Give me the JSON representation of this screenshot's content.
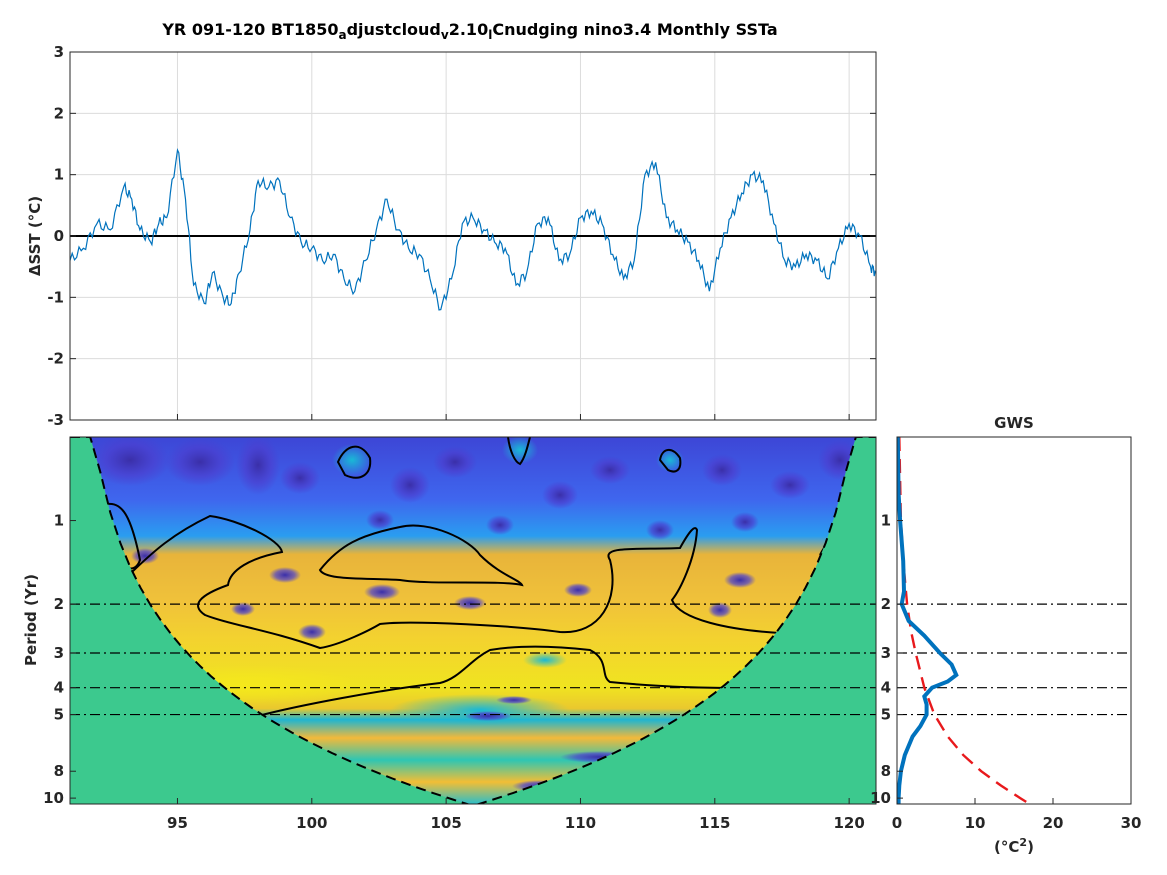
{
  "title": "YR 091-120 BT1850_adjustcloud_v2.10_lCnudging nino3.4 Monthly SSTa",
  "title_parts": {
    "p1": "YR 091-120 BT1850",
    "sub1": "a",
    "p2": "djustcloud",
    "sub2": "v",
    "p3": "2.10",
    "sub3": "l",
    "p4": "Cnudging nino3.4 Monthly SSTa"
  },
  "gws_title": "GWS",
  "colors": {
    "series": "#0072bd",
    "gws_line": "#0072bd",
    "signif": "#e8191c",
    "zero_line": "#000000",
    "coi_fill": "#3cc98e",
    "axis": "#262626"
  },
  "chart_data": [
    {
      "type": "line",
      "name": "timeseries",
      "ylabel": "ΔSST (°C)",
      "xlim": [
        91,
        121
      ],
      "ylim": [
        -3,
        3
      ],
      "xticks": [
        "95",
        "100",
        "105",
        "110",
        "115",
        "120"
      ],
      "yticks": [
        "-3",
        "-2",
        "-1",
        "0",
        "1",
        "2",
        "3"
      ],
      "grid": true,
      "x": [
        91.0,
        91.5,
        92.0,
        92.5,
        93.0,
        93.3,
        93.6,
        94.0,
        94.3,
        94.6,
        95.0,
        95.3,
        95.6,
        96.0,
        96.3,
        96.7,
        97.0,
        97.3,
        97.7,
        98.0,
        98.4,
        98.8,
        99.2,
        99.6,
        100.0,
        100.4,
        100.8,
        101.2,
        101.6,
        102.0,
        102.4,
        102.8,
        103.2,
        103.6,
        104.0,
        104.4,
        104.8,
        105.2,
        105.6,
        106.0,
        106.4,
        106.8,
        107.2,
        107.6,
        108.0,
        108.4,
        108.8,
        109.2,
        109.6,
        110.0,
        110.4,
        110.8,
        111.2,
        111.6,
        112.0,
        112.4,
        112.8,
        113.2,
        113.6,
        114.0,
        114.4,
        114.8,
        115.2,
        115.6,
        116.0,
        116.4,
        116.8,
        117.2,
        117.6,
        118.0,
        118.4,
        118.8,
        119.2,
        119.6,
        120.0,
        120.4,
        120.8,
        121.0
      ],
      "y": [
        -0.4,
        -0.2,
        0.2,
        0.1,
        0.8,
        0.6,
        0.1,
        -0.1,
        0.2,
        0.3,
        1.4,
        0.6,
        -0.8,
        -1.1,
        -0.6,
        -1.0,
        -1.1,
        -0.6,
        0.1,
        0.9,
        0.8,
        0.9,
        0.3,
        -0.1,
        -0.2,
        -0.4,
        -0.3,
        -0.7,
        -0.9,
        -0.4,
        0.1,
        0.6,
        0.1,
        -0.2,
        -0.3,
        -0.7,
        -1.2,
        -0.7,
        0.2,
        0.3,
        0.1,
        -0.1,
        -0.2,
        -0.8,
        -0.6,
        0.2,
        0.3,
        -0.4,
        -0.3,
        0.3,
        0.4,
        0.2,
        -0.3,
        -0.7,
        -0.4,
        1.0,
        1.2,
        0.3,
        0.1,
        -0.1,
        -0.4,
        -0.9,
        -0.2,
        0.3,
        0.7,
        1.0,
        0.9,
        0.2,
        -0.4,
        -0.5,
        -0.3,
        -0.4,
        -0.7,
        -0.2,
        0.2,
        0.0,
        -0.5,
        -0.6
      ]
    },
    {
      "type": "heatmap",
      "name": "wavelet_power",
      "ylabel": "Period (Yr)",
      "xlim": [
        91,
        121
      ],
      "yscale": "log",
      "ylim": [
        0.5,
        10.5
      ],
      "xticks": [
        "95",
        "100",
        "105",
        "110",
        "115",
        "120"
      ],
      "yticks": [
        "1",
        "2",
        "3",
        "4",
        "5",
        "8",
        "10"
      ],
      "reference_periods": [
        2,
        3,
        4,
        5
      ]
    },
    {
      "type": "line",
      "name": "GWS",
      "title": "GWS",
      "xlabel": "(°C²)",
      "xlim": [
        0,
        30
      ],
      "xticks": [
        "0",
        "10",
        "20",
        "30"
      ],
      "yticks": [
        "1",
        "2",
        "3",
        "4",
        "5",
        "8",
        "10"
      ],
      "series": [
        {
          "name": "global wavelet spectrum",
          "period": [
            0.5,
            0.8,
            1.0,
            1.4,
            1.8,
            2.0,
            2.3,
            2.6,
            3.0,
            3.3,
            3.6,
            3.8,
            4.0,
            4.3,
            4.6,
            5.0,
            5.5,
            6.0,
            7.0,
            8.0,
            9.0,
            10.0,
            10.5
          ],
          "power": [
            0.1,
            0.2,
            0.4,
            0.8,
            0.9,
            0.6,
            1.5,
            3.5,
            5.5,
            7.0,
            7.6,
            6.5,
            4.5,
            3.5,
            3.8,
            3.8,
            3.0,
            2.0,
            1.0,
            0.5,
            0.3,
            0.2,
            0.2
          ]
        },
        {
          "name": "significance",
          "period": [
            0.5,
            1.0,
            1.5,
            2.0,
            2.5,
            3.0,
            4.0,
            5.0,
            6.0,
            7.0,
            8.0,
            9.0,
            10.0,
            10.5
          ],
          "power": [
            0.3,
            0.5,
            0.9,
            1.3,
            1.8,
            2.4,
            3.5,
            4.8,
            6.5,
            8.5,
            10.8,
            13.3,
            15.8,
            17.0
          ]
        }
      ]
    }
  ]
}
